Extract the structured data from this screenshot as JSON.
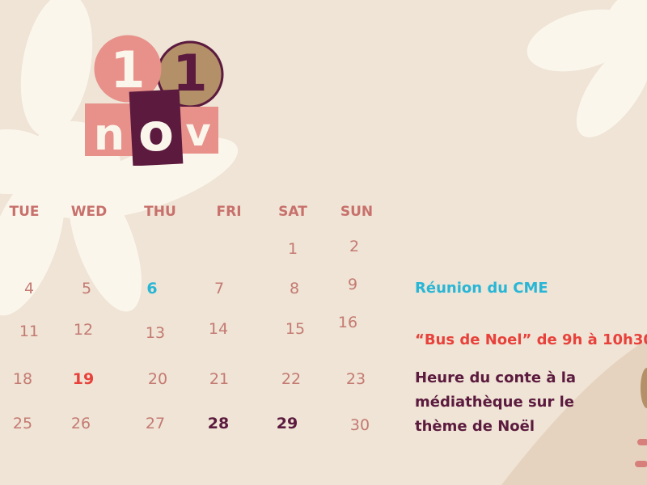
{
  "header": {
    "day": "11",
    "month": "nov"
  },
  "weekdays": [
    "TUE",
    "WED",
    "THU",
    "FRI",
    "SAT",
    "SUN"
  ],
  "weeks": [
    [
      "",
      "",
      "",
      "",
      "1",
      "2"
    ],
    [
      "4",
      "5",
      "6",
      "7",
      "8",
      "9"
    ],
    [
      "11",
      "12",
      "13",
      "14",
      "15",
      "16"
    ],
    [
      "18",
      "19",
      "20",
      "21",
      "22",
      "23"
    ],
    [
      "25",
      "26",
      "27",
      "28",
      "29",
      "30"
    ]
  ],
  "highlights": {
    "6": "#29b6d6",
    "19": "#e8413b",
    "28": "#5b1a3e",
    "29": "#5b1a3e"
  },
  "events": [
    {
      "text": "Réunion du CME",
      "color": "#29b6d6"
    },
    {
      "text": "“Bus de Noel” de 9h à 10h30",
      "color": "#e8413b"
    },
    {
      "lines": [
        "Heure du conte à la",
        "médiathèque  sur le",
        "thème de Noël"
      ],
      "color": "#5b1a3e"
    }
  ],
  "colors": {
    "background": "#efe4d5",
    "flower": "#fbf6ec",
    "pink": "#e8908a",
    "tan": "#b39068",
    "plum": "#5b1a3e"
  }
}
